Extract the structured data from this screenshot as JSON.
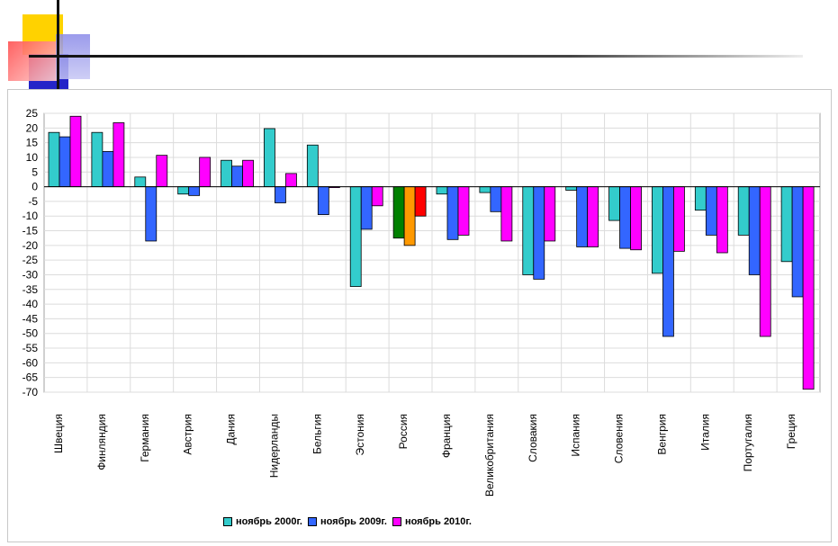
{
  "chart_data": {
    "type": "bar",
    "categories": [
      "Швеция",
      "Финляндия",
      "Германия",
      "Австрия",
      "Дания",
      "Нидерланды",
      "Бельгия",
      "Эстония",
      "Россия",
      "Франция",
      "Великобритания",
      "Словакия",
      "Испания",
      "Словения",
      "Венгрия",
      "Италия",
      "Португалия",
      "Греция"
    ],
    "series": [
      {
        "name": "ноябрь 2000г.",
        "color": "#33cccc",
        "values": [
          18.5,
          18.5,
          3.3,
          -2.5,
          9.0,
          19.8,
          14.2,
          -34.0,
          -17.5,
          -2.5,
          -2.0,
          -30.0,
          -1.2,
          -11.5,
          -29.5,
          -8.0,
          -16.5,
          -25.5
        ]
      },
      {
        "name": "ноябрь 2009г.",
        "color": "#3366ff",
        "values": [
          17.0,
          12.0,
          -18.5,
          -3.0,
          7.0,
          -5.5,
          -9.5,
          -14.5,
          -20.0,
          -18.0,
          -8.5,
          -31.5,
          -20.5,
          -21.0,
          -51.0,
          -16.5,
          -30.0,
          -37.5
        ]
      },
      {
        "name": "ноябрь 2010г.",
        "color": "#ff00ff",
        "values": [
          24.0,
          21.8,
          10.7,
          10.0,
          9.0,
          4.5,
          -0.3,
          -6.5,
          -10.0,
          -16.5,
          -18.5,
          -18.5,
          -20.5,
          -21.5,
          -22.0,
          -22.5,
          -51.0,
          -69.0
        ]
      }
    ],
    "highlight": {
      "category": "Россия",
      "colors": [
        "#008000",
        "#ff9900",
        "#ff0000"
      ]
    },
    "ylim": [
      -70,
      25
    ],
    "ytick_step": 5,
    "grid": true,
    "legend_position": "bottom",
    "title": "",
    "xlabel": "",
    "ylabel": ""
  }
}
